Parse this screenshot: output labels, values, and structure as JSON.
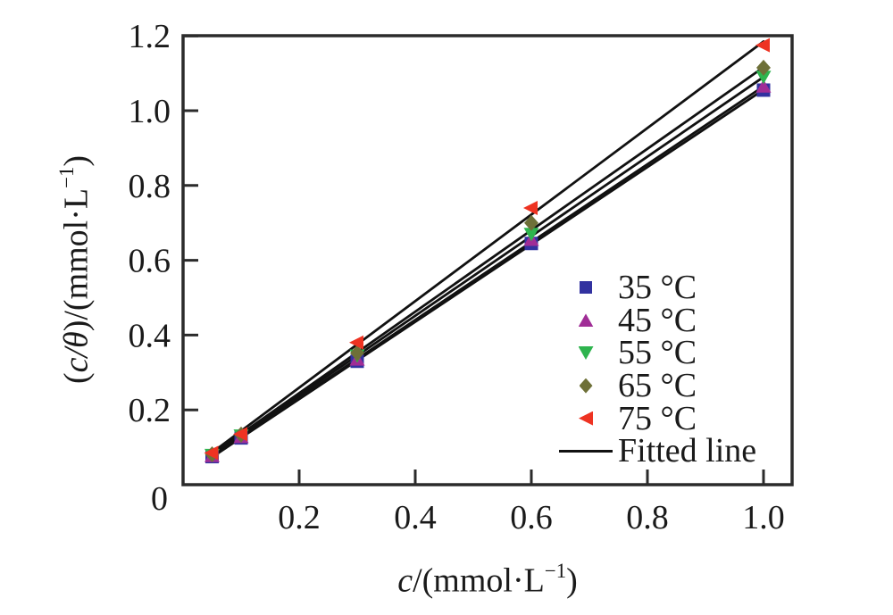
{
  "chart_data": {
    "type": "scatter",
    "title": "",
    "xlabel": "c/(mmol·L−1)",
    "ylabel": "(c/θ)/(mmol·L−1)",
    "xlabel_parts": {
      "pre": "",
      "var": "c",
      "mid": "/(mmol·L",
      "sup": "−1",
      "close": ")"
    },
    "ylabel_parts": {
      "pre": "(",
      "var": "c/θ",
      "mid": ")/(mmol·L",
      "sup": "−1",
      "close": ")"
    },
    "xlim": [
      0,
      1.05
    ],
    "ylim": [
      0,
      1.2
    ],
    "grid": false,
    "legend_position": "right-center",
    "x_ticks": [
      0.2,
      0.4,
      0.6,
      0.8,
      1.0
    ],
    "x_tick_labels": [
      "0.2",
      "0.4",
      "0.6",
      "0.8",
      "1.0"
    ],
    "y_ticks": [
      0.2,
      0.4,
      0.6,
      0.8,
      1.0,
      1.2
    ],
    "y_tick_labels": [
      "0.2",
      "0.4",
      "0.6",
      "0.8",
      "1.0",
      "1.2"
    ],
    "origin_label": "0",
    "x": [
      0.05,
      0.1,
      0.3,
      0.6,
      1.0
    ],
    "series": [
      {
        "name": "35C",
        "label": "35 °C",
        "marker": "square",
        "color": "#3232a0",
        "values": [
          0.075,
          0.125,
          0.33,
          0.645,
          1.055
        ],
        "fit": {
          "slope": 1.034,
          "intercept": 0.022
        }
      },
      {
        "name": "45C",
        "label": "45 °C",
        "marker": "triangle-up",
        "color": "#a02d96",
        "values": [
          0.077,
          0.128,
          0.335,
          0.655,
          1.065
        ],
        "fit": {
          "slope": 1.041,
          "intercept": 0.024
        }
      },
      {
        "name": "55C",
        "label": "55 °C",
        "marker": "triangle-down",
        "color": "#2eb44e",
        "values": [
          0.079,
          0.131,
          0.345,
          0.67,
          1.09
        ],
        "fit": {
          "slope": 1.064,
          "intercept": 0.026
        }
      },
      {
        "name": "65C",
        "label": "65 °C",
        "marker": "diamond",
        "color": "#6e7038",
        "values": [
          0.081,
          0.134,
          0.352,
          0.7,
          1.115
        ],
        "fit": {
          "slope": 1.089,
          "intercept": 0.027
        }
      },
      {
        "name": "75C",
        "label": "75 °C",
        "marker": "triangle-left",
        "color": "#ee3322",
        "values": [
          0.085,
          0.135,
          0.38,
          0.74,
          1.175
        ],
        "fit": {
          "slope": 1.157,
          "intercept": 0.028
        }
      }
    ],
    "fitted_line_label": "Fitted line",
    "fit_line_color": "#111111",
    "axis_color": "#2b2b2b",
    "text_color": "#1a1a1a"
  }
}
